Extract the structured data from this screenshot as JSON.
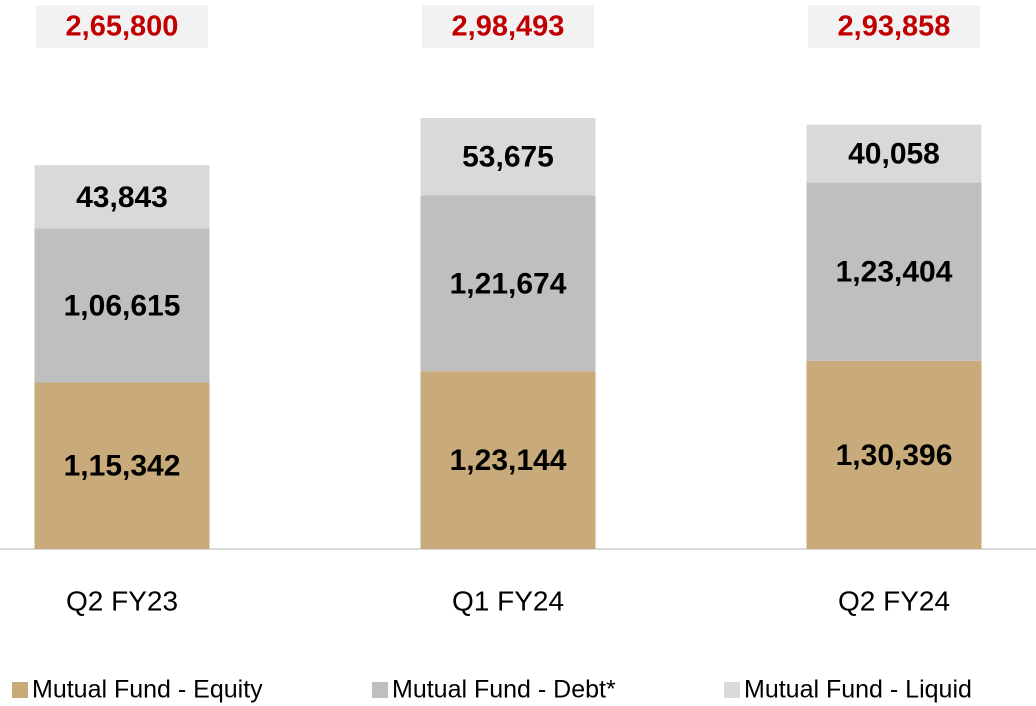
{
  "chart_data": {
    "type": "stacked_bar",
    "categories": [
      "Q2 FY23",
      "Q1 FY24",
      "Q2 FY24"
    ],
    "series": [
      {
        "name": "Mutual Fund - Equity",
        "color": "#c9ab7b",
        "values": [
          115342,
          123144,
          130396
        ],
        "value_labels": [
          "1,15,342",
          "1,23,144",
          "1,30,396"
        ]
      },
      {
        "name": "Mutual Fund - Debt*",
        "color": "#bfbfbf",
        "values": [
          106615,
          121674,
          123404
        ],
        "value_labels": [
          "1,06,615",
          "1,21,674",
          "1,23,404"
        ]
      },
      {
        "name": "Mutual Fund - Liquid",
        "color": "#d9d9d9",
        "values": [
          43843,
          53675,
          40058
        ],
        "value_labels": [
          "43,843",
          "53,675",
          "40,058"
        ]
      }
    ],
    "totals": {
      "values": [
        265800,
        298493,
        293858
      ],
      "value_labels": [
        "2,65,800",
        "2,98,493",
        "2,93,858"
      ],
      "color": "#c00000"
    }
  }
}
